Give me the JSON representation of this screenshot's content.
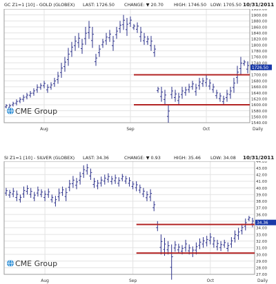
{
  "colors": {
    "bar": "#2a2f8a",
    "level_line": "#b22222",
    "last_box": "#1a3aa8",
    "grid": "#e3e3e3",
    "frame": "#9a9a9a",
    "logo_text": "#333333"
  },
  "charts": [
    {
      "header": {
        "symbol": "GC Z1=1 [10] - GOLD (GLOBEX)",
        "last": "LAST: 1726.50",
        "change": "CHANGE: ▼ 20.70",
        "high": "HIGH: 1746.50",
        "low": "LOW: 1705.50",
        "date": "10/31/2011"
      },
      "logo_text": "CME Group",
      "x_labels": [
        "Aug",
        "Sep",
        "Oct",
        "Daily"
      ],
      "last_label": "1726.50"
    },
    {
      "header": {
        "symbol": "SI Z1=1 [10] - SILVER (GLOBEX)",
        "last": "LAST: 34.36",
        "change": "CHANGE: ▼ 0.93",
        "high": "HIGH: 35.46",
        "low": "LOW: 34.08",
        "date": "10/31/2011"
      },
      "logo_text": "CME Group",
      "x_labels": [
        "Aug",
        "Sep",
        "Oct",
        "Daily"
      ],
      "last_label": "34.36"
    }
  ],
  "chart_data": [
    {
      "type": "ohlc",
      "series": "GC Z1=1 [10] - GOLD (GLOBEX)",
      "ylim": [
        1540,
        1920
      ],
      "yticks": [
        1540,
        1560,
        1580,
        1600,
        1620,
        1640,
        1660,
        1680,
        1700,
        1720,
        1740,
        1760,
        1780,
        1800,
        1820,
        1840,
        1860,
        1880,
        1900,
        1920
      ],
      "x_tick_labels": [
        "Aug",
        "Sep",
        "Oct"
      ],
      "x_tick_index": [
        11,
        36,
        58
      ],
      "horizontal_lines": [
        1700,
        1600
      ],
      "horizontal_lines_start_index": 37,
      "bars": [
        [
          1588,
          1602
        ],
        [
          1585,
          1603
        ],
        [
          1594,
          1610
        ],
        [
          1598,
          1618
        ],
        [
          1605,
          1625
        ],
        [
          1610,
          1633
        ],
        [
          1618,
          1640
        ],
        [
          1624,
          1646
        ],
        [
          1630,
          1655
        ],
        [
          1640,
          1668
        ],
        [
          1650,
          1672
        ],
        [
          1655,
          1680
        ],
        [
          1640,
          1668
        ],
        [
          1650,
          1675
        ],
        [
          1660,
          1690
        ],
        [
          1670,
          1710
        ],
        [
          1690,
          1740
        ],
        [
          1710,
          1760
        ],
        [
          1730,
          1790
        ],
        [
          1760,
          1810
        ],
        [
          1780,
          1830
        ],
        [
          1790,
          1840
        ],
        [
          1770,
          1820
        ],
        [
          1800,
          1860
        ],
        [
          1820,
          1880
        ],
        [
          1790,
          1860
        ],
        [
          1730,
          1770
        ],
        [
          1760,
          1800
        ],
        [
          1790,
          1820
        ],
        [
          1800,
          1840
        ],
        [
          1810,
          1850
        ],
        [
          1780,
          1830
        ],
        [
          1820,
          1860
        ],
        [
          1840,
          1880
        ],
        [
          1850,
          1900
        ],
        [
          1830,
          1890
        ],
        [
          1860,
          1895
        ],
        [
          1850,
          1870
        ],
        [
          1840,
          1875
        ],
        [
          1810,
          1860
        ],
        [
          1800,
          1840
        ],
        [
          1800,
          1830
        ],
        [
          1780,
          1830
        ],
        [
          1760,
          1800
        ],
        [
          1640,
          1660
        ],
        [
          1610,
          1660
        ],
        [
          1600,
          1650
        ],
        [
          1540,
          1600
        ],
        [
          1620,
          1660
        ],
        [
          1610,
          1650
        ],
        [
          1600,
          1640
        ],
        [
          1620,
          1660
        ],
        [
          1630,
          1660
        ],
        [
          1640,
          1670
        ],
        [
          1650,
          1680
        ],
        [
          1630,
          1670
        ],
        [
          1650,
          1690
        ],
        [
          1660,
          1690
        ],
        [
          1660,
          1700
        ],
        [
          1650,
          1685
        ],
        [
          1640,
          1670
        ],
        [
          1620,
          1650
        ],
        [
          1610,
          1640
        ],
        [
          1600,
          1630
        ],
        [
          1610,
          1650
        ],
        [
          1620,
          1660
        ],
        [
          1640,
          1690
        ],
        [
          1670,
          1730
        ],
        [
          1700,
          1760
        ],
        [
          1730,
          1750
        ],
        [
          1705,
          1745
        ]
      ]
    },
    {
      "type": "ohlc",
      "series": "SI Z1=1 [10] - SILVER (GLOBEX)",
      "ylim": [
        27,
        44
      ],
      "yticks": [
        27,
        28,
        29,
        30,
        31,
        32,
        33,
        34,
        35,
        36,
        37,
        38,
        39,
        40,
        41,
        42,
        43,
        44
      ],
      "x_tick_labels": [
        "Aug",
        "Sep",
        "Oct"
      ],
      "x_tick_index": [
        11,
        36,
        58
      ],
      "horizontal_lines": [
        34.5,
        30.2
      ],
      "horizontal_lines_start_index": 37,
      "bars": [
        [
          38.8,
          40.0
        ],
        [
          38.5,
          39.7
        ],
        [
          38.6,
          40.0
        ],
        [
          38.0,
          39.6
        ],
        [
          37.8,
          39.0
        ],
        [
          38.5,
          40.2
        ],
        [
          39.0,
          40.4
        ],
        [
          38.5,
          40.0
        ],
        [
          38.0,
          39.4
        ],
        [
          38.7,
          40.2
        ],
        [
          38.6,
          39.8
        ],
        [
          38.0,
          39.6
        ],
        [
          38.5,
          39.9
        ],
        [
          37.8,
          39.0
        ],
        [
          37.2,
          38.8
        ],
        [
          38.0,
          39.9
        ],
        [
          38.8,
          40.2
        ],
        [
          38.0,
          40.0
        ],
        [
          39.5,
          41.2
        ],
        [
          40.0,
          41.8
        ],
        [
          39.8,
          41.5
        ],
        [
          40.5,
          42.4
        ],
        [
          41.5,
          43.4
        ],
        [
          42.0,
          43.6
        ],
        [
          41.2,
          42.9
        ],
        [
          40.0,
          41.5
        ],
        [
          39.8,
          41.2
        ],
        [
          40.2,
          41.7
        ],
        [
          40.5,
          42.0
        ],
        [
          40.8,
          42.2
        ],
        [
          40.5,
          41.8
        ],
        [
          40.6,
          42.0
        ],
        [
          40.2,
          41.6
        ],
        [
          41.0,
          42.1
        ],
        [
          40.6,
          41.8
        ],
        [
          40.2,
          41.6
        ],
        [
          39.8,
          41.0
        ],
        [
          39.5,
          41.0
        ],
        [
          39.2,
          40.5
        ],
        [
          38.6,
          40.0
        ],
        [
          38.0,
          39.5
        ],
        [
          38.0,
          39.8
        ],
        [
          36.5,
          38.0
        ],
        [
          33.5,
          35.0
        ],
        [
          30.0,
          33.0
        ],
        [
          29.8,
          32.5
        ],
        [
          30.0,
          32.0
        ],
        [
          26.2,
          31.5
        ],
        [
          30.4,
          32.0
        ],
        [
          30.2,
          31.6
        ],
        [
          30.0,
          31.4
        ],
        [
          30.4,
          32.2
        ],
        [
          30.0,
          31.5
        ],
        [
          29.6,
          31.2
        ],
        [
          30.0,
          31.8
        ],
        [
          30.8,
          32.4
        ],
        [
          31.0,
          32.6
        ],
        [
          31.2,
          32.8
        ],
        [
          31.5,
          33.2
        ],
        [
          31.0,
          32.6
        ],
        [
          30.6,
          32.2
        ],
        [
          30.5,
          32.0
        ],
        [
          31.0,
          32.2
        ],
        [
          30.4,
          31.8
        ],
        [
          31.0,
          32.6
        ],
        [
          31.8,
          33.6
        ],
        [
          32.2,
          34.0
        ],
        [
          33.0,
          34.6
        ],
        [
          33.6,
          35.4
        ],
        [
          35.0,
          35.8
        ],
        [
          34.1,
          35.5
        ]
      ]
    }
  ]
}
